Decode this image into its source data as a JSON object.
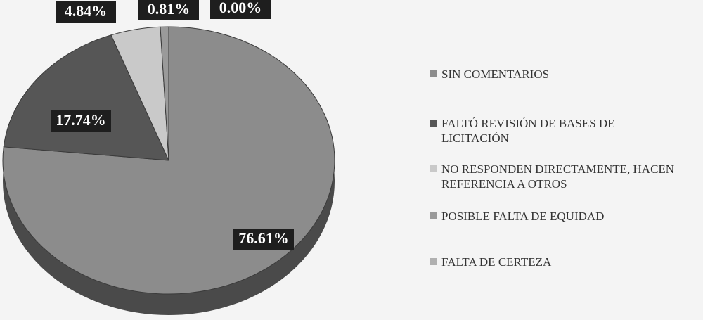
{
  "chart_data": {
    "type": "pie",
    "categories": [
      "SIN COMENTARIOS",
      "FALTÓ REVISIÓN DE BASES DE LICITACIÓN",
      "NO RESPONDEN DIRECTAMENTE, HACEN REFERENCIA A OTROS",
      "POSIBLE FALTA DE EQUIDAD",
      "FALTA DE CERTEZA"
    ],
    "values": [
      76.61,
      17.74,
      4.84,
      0.81,
      0.0
    ],
    "value_labels": [
      "76.61%",
      "17.74%",
      "4.84%",
      "0.81%",
      "0.00%"
    ],
    "colors": [
      "#8c8c8c",
      "#565656",
      "#c9c9c9",
      "#9a9a9a",
      "#b0b0b0"
    ],
    "legend": "right"
  }
}
